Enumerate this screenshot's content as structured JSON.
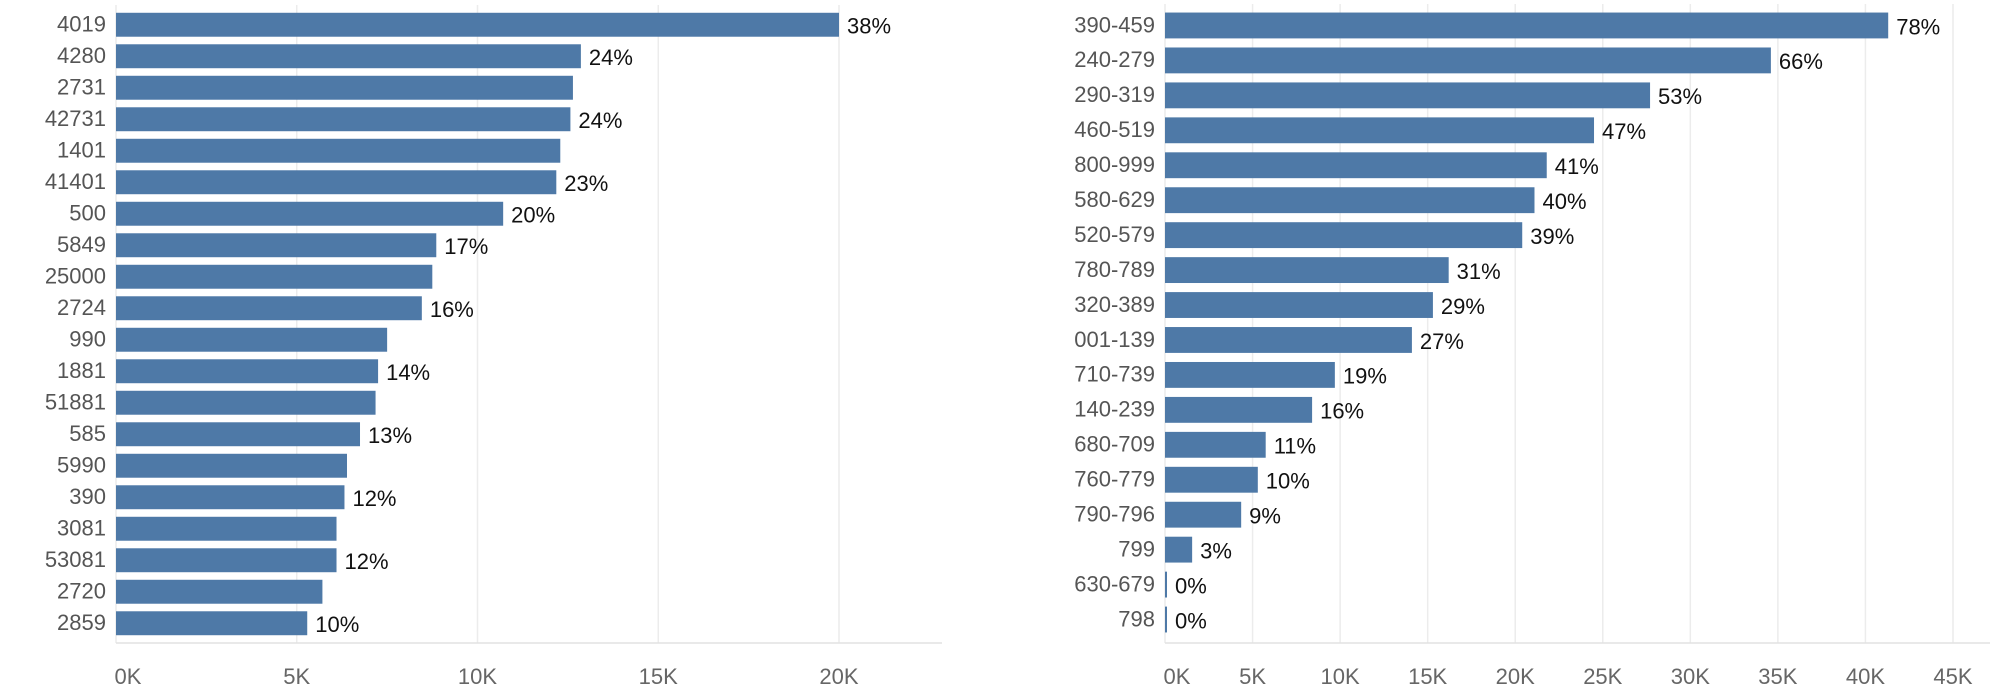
{
  "colors": {
    "bar": "#4e79a7"
  },
  "chart_data": [
    {
      "type": "bar",
      "orientation": "horizontal",
      "title": "",
      "xlabel": "",
      "ylabel": "",
      "xlim": [
        0,
        23000
      ],
      "ticks": [
        0,
        5000,
        10000,
        15000,
        20000
      ],
      "tick_labels": [
        "0K",
        "5K",
        "10K",
        "15K",
        "20K"
      ],
      "grid": true,
      "categories": [
        "4019",
        "4280",
        "2731",
        "42731",
        "1401",
        "41401",
        "500",
        "5849",
        "25000",
        "2724",
        "990",
        "1881",
        "51881",
        "585",
        "5990",
        "390",
        "3081",
        "53081",
        "2720",
        "2859"
      ],
      "values": [
        20000,
        12860,
        12640,
        12570,
        12290,
        12180,
        10710,
        8860,
        8750,
        8460,
        7500,
        7250,
        7180,
        6750,
        6390,
        6320,
        6100,
        6100,
        5710,
        5290
      ],
      "data_labels": [
        "38%",
        "24%",
        null,
        "24%",
        null,
        "23%",
        "20%",
        "17%",
        null,
        "16%",
        null,
        "14%",
        null,
        "13%",
        null,
        "12%",
        null,
        "12%",
        null,
        "10%"
      ]
    },
    {
      "type": "bar",
      "orientation": "horizontal",
      "title": "",
      "xlabel": "",
      "ylabel": "",
      "xlim": [
        0,
        45000
      ],
      "ticks": [
        0,
        5000,
        10000,
        15000,
        20000,
        25000,
        30000,
        35000,
        40000,
        45000
      ],
      "tick_labels": [
        "0K",
        "5K",
        "10K",
        "15K",
        "20K",
        "25K",
        "30K",
        "35K",
        "40K",
        "45K"
      ],
      "grid": true,
      "categories": [
        "390-459",
        "240-279",
        "290-319",
        "460-519",
        "800-999",
        "580-629",
        "520-579",
        "780-789",
        "320-389",
        "001-139",
        "710-739",
        "140-239",
        "680-709",
        "760-779",
        "790-796",
        "799",
        "630-679",
        "798"
      ],
      "values": [
        41300,
        34600,
        27700,
        24500,
        21800,
        21100,
        20400,
        16200,
        15300,
        14100,
        9700,
        8400,
        5750,
        5300,
        4350,
        1550,
        100,
        100
      ],
      "data_labels": [
        "78%",
        "66%",
        "53%",
        "47%",
        "41%",
        "40%",
        "39%",
        "31%",
        "29%",
        "27%",
        "19%",
        "16%",
        "11%",
        "10%",
        "9%",
        "3%",
        "0%",
        "0%"
      ]
    }
  ]
}
